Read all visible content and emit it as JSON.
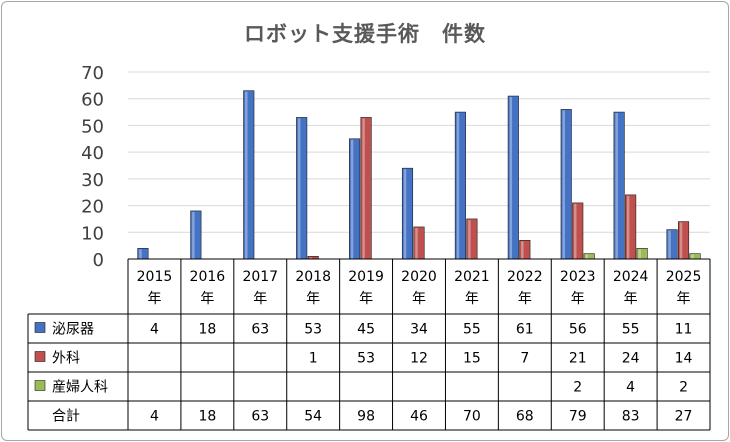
{
  "chart_data": {
    "type": "bar",
    "title": "ロボット支援手術　件数",
    "categories": [
      "2015年",
      "2016年",
      "2017年",
      "2018年",
      "2019年",
      "2020年",
      "2021年",
      "2022年",
      "2023年",
      "2024年",
      "2025年"
    ],
    "category_lines": [
      [
        "2015",
        "年"
      ],
      [
        "2016",
        "年"
      ],
      [
        "2017",
        "年"
      ],
      [
        "2018",
        "年"
      ],
      [
        "2019",
        "年"
      ],
      [
        "2020",
        "年"
      ],
      [
        "2021",
        "年"
      ],
      [
        "2022",
        "年"
      ],
      [
        "2023",
        "年"
      ],
      [
        "2024",
        "年"
      ],
      [
        "2025",
        "年"
      ]
    ],
    "series": [
      {
        "name": "泌尿器",
        "color": "#4472c4",
        "values": [
          4,
          18,
          63,
          53,
          45,
          34,
          55,
          61,
          56,
          55,
          11
        ]
      },
      {
        "name": "外科",
        "color": "#c0504d",
        "values": [
          null,
          null,
          null,
          1,
          53,
          12,
          15,
          7,
          21,
          24,
          14
        ]
      },
      {
        "name": "産婦人科",
        "color": "#9bbb59",
        "values": [
          null,
          null,
          null,
          null,
          null,
          null,
          null,
          null,
          2,
          4,
          2
        ]
      }
    ],
    "totals_label": "合計",
    "totals": [
      4,
      18,
      63,
      54,
      98,
      46,
      70,
      68,
      79,
      83,
      27
    ],
    "ylim": [
      0,
      70
    ],
    "yticks": [
      0,
      10,
      20,
      30,
      40,
      50,
      60,
      70
    ],
    "grid": true,
    "data_table": true
  }
}
